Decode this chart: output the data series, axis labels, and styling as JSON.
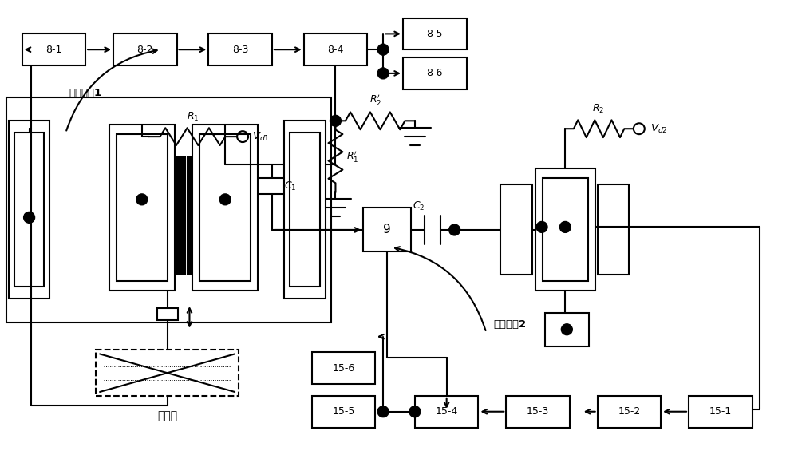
{
  "bg_color": "#ffffff",
  "lc": "#000000",
  "lw": 1.5,
  "fig_w": 10.0,
  "fig_h": 5.7,
  "dpi": 100,
  "label_loop1": "振荚回路1",
  "label_loop2": "振荚回路2",
  "label_mass": "质量块"
}
